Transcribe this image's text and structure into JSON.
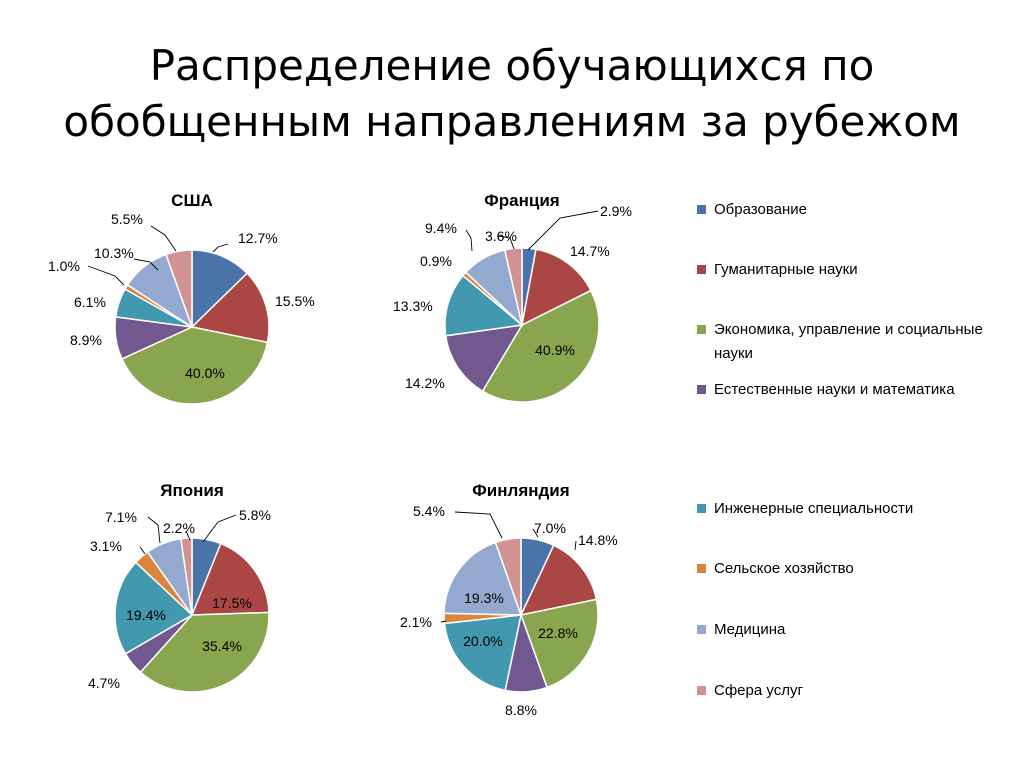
{
  "slide": {
    "title_line1": "Распределение обучающихся по",
    "title_line2": "обобщенным направлениям за рубежом"
  },
  "legend": [
    {
      "label": "Образование",
      "color": "#4A73AA"
    },
    {
      "label": "Гуманитарные науки",
      "color": "#AA4643"
    },
    {
      "label": "Экономика, управление и социальные науки",
      "color": "#89A54E"
    },
    {
      "label": "Естественные науки и математика",
      "color": "#71588F"
    },
    {
      "label": "Инженерные специальности",
      "color": "#4198AF"
    },
    {
      "label": "Сельское хозяйство",
      "color": "#DB843D"
    },
    {
      "label": "Медицина",
      "color": "#93A9CF"
    },
    {
      "label": "Сфера услуг",
      "color": "#D19392"
    }
  ],
  "chart_data": [
    {
      "type": "pie",
      "title": "США",
      "categories": [
        "Образование",
        "Гуманитарные науки",
        "Экономика, управление и социальные науки",
        "Естественные науки и математика",
        "Инженерные специальности",
        "Сельское хозяйство",
        "Медицина",
        "Сфера услуг"
      ],
      "values": [
        12.7,
        15.5,
        40.0,
        8.9,
        6.1,
        1.0,
        10.3,
        5.5
      ],
      "labels": [
        "12.7%",
        "15.5%",
        "40.0%",
        "8.9%",
        "6.1%",
        "1.0%",
        "10.3%",
        "5.5%"
      ]
    },
    {
      "type": "pie",
      "title": "Франция",
      "categories": [
        "Образование",
        "Гуманитарные науки",
        "Экономика, управление и социальные науки",
        "Естественные науки и математика",
        "Инженерные специальности",
        "Сельское хозяйство",
        "Медицина",
        "Сфера услуг"
      ],
      "values": [
        2.9,
        14.7,
        40.9,
        14.2,
        13.3,
        0.9,
        9.4,
        3.6
      ],
      "labels": [
        "2.9%",
        "14.7%",
        "40.9%",
        "14.2%",
        "13.3%",
        "0.9%",
        "9.4%",
        "3.6%"
      ]
    },
    {
      "type": "pie",
      "title": "Япония",
      "categories": [
        "Образование",
        "Гуманитарные науки",
        "Экономика, управление и социальные науки",
        "Естественные науки и математика",
        "Инженерные специальности",
        "Сельское хозяйство",
        "Медицина",
        "Сфера услуг"
      ],
      "values": [
        5.8,
        17.5,
        35.4,
        4.7,
        19.4,
        3.1,
        7.1,
        2.2
      ],
      "labels": [
        "5.8%",
        "17.5%",
        "35.4%",
        "4.7%",
        "19.4%",
        "3.1%",
        "7.1%",
        "2.2%"
      ]
    },
    {
      "type": "pie",
      "title": "Финляндия",
      "categories": [
        "Образование",
        "Гуманитарные науки",
        "Экономика, управление и социальные науки",
        "Естественные науки и математика",
        "Инженерные специальности",
        "Сельское хозяйство",
        "Медицина",
        "Сфера услуг"
      ],
      "values": [
        7.0,
        14.8,
        22.8,
        8.8,
        20.0,
        2.1,
        19.3,
        5.4
      ],
      "labels": [
        "7.0%",
        "14.8%",
        "22.8%",
        "8.8%",
        "20.0%",
        "2.1%",
        "19.3%",
        "5.4%"
      ]
    }
  ]
}
